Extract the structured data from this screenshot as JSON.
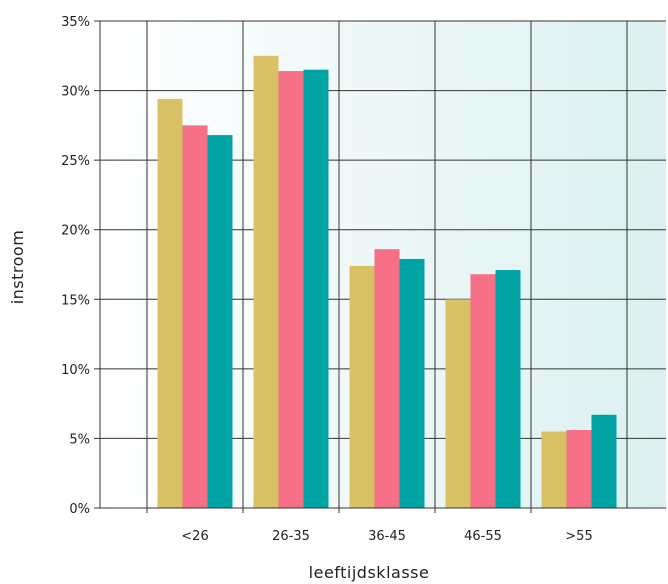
{
  "chart_data": {
    "type": "bar",
    "title": "",
    "xlabel": "leeftijdsklasse",
    "ylabel": "instroom",
    "categories": [
      "<26",
      "26-35",
      "36-45",
      "46-55",
      ">55"
    ],
    "series": [
      {
        "values": [
          29.4,
          32.5,
          17.4,
          15.0,
          5.5
        ],
        "color": "#d9c265"
      },
      {
        "values": [
          27.5,
          31.4,
          18.6,
          16.8,
          5.6
        ],
        "color": "#f56f86"
      },
      {
        "values": [
          26.8,
          31.5,
          17.9,
          17.1,
          6.7
        ],
        "color": "#00a3a3"
      }
    ],
    "ylim": [
      0,
      35
    ],
    "yticks": [
      0,
      5,
      10,
      15,
      20,
      25,
      30,
      35
    ],
    "ytick_labels": [
      "0%",
      "5%",
      "10%",
      "15%",
      "20%",
      "25%",
      "30%",
      "35%"
    ],
    "grid": true,
    "legend": "none",
    "plot_background": [
      "#ffffff",
      "#dcf0f0"
    ]
  }
}
